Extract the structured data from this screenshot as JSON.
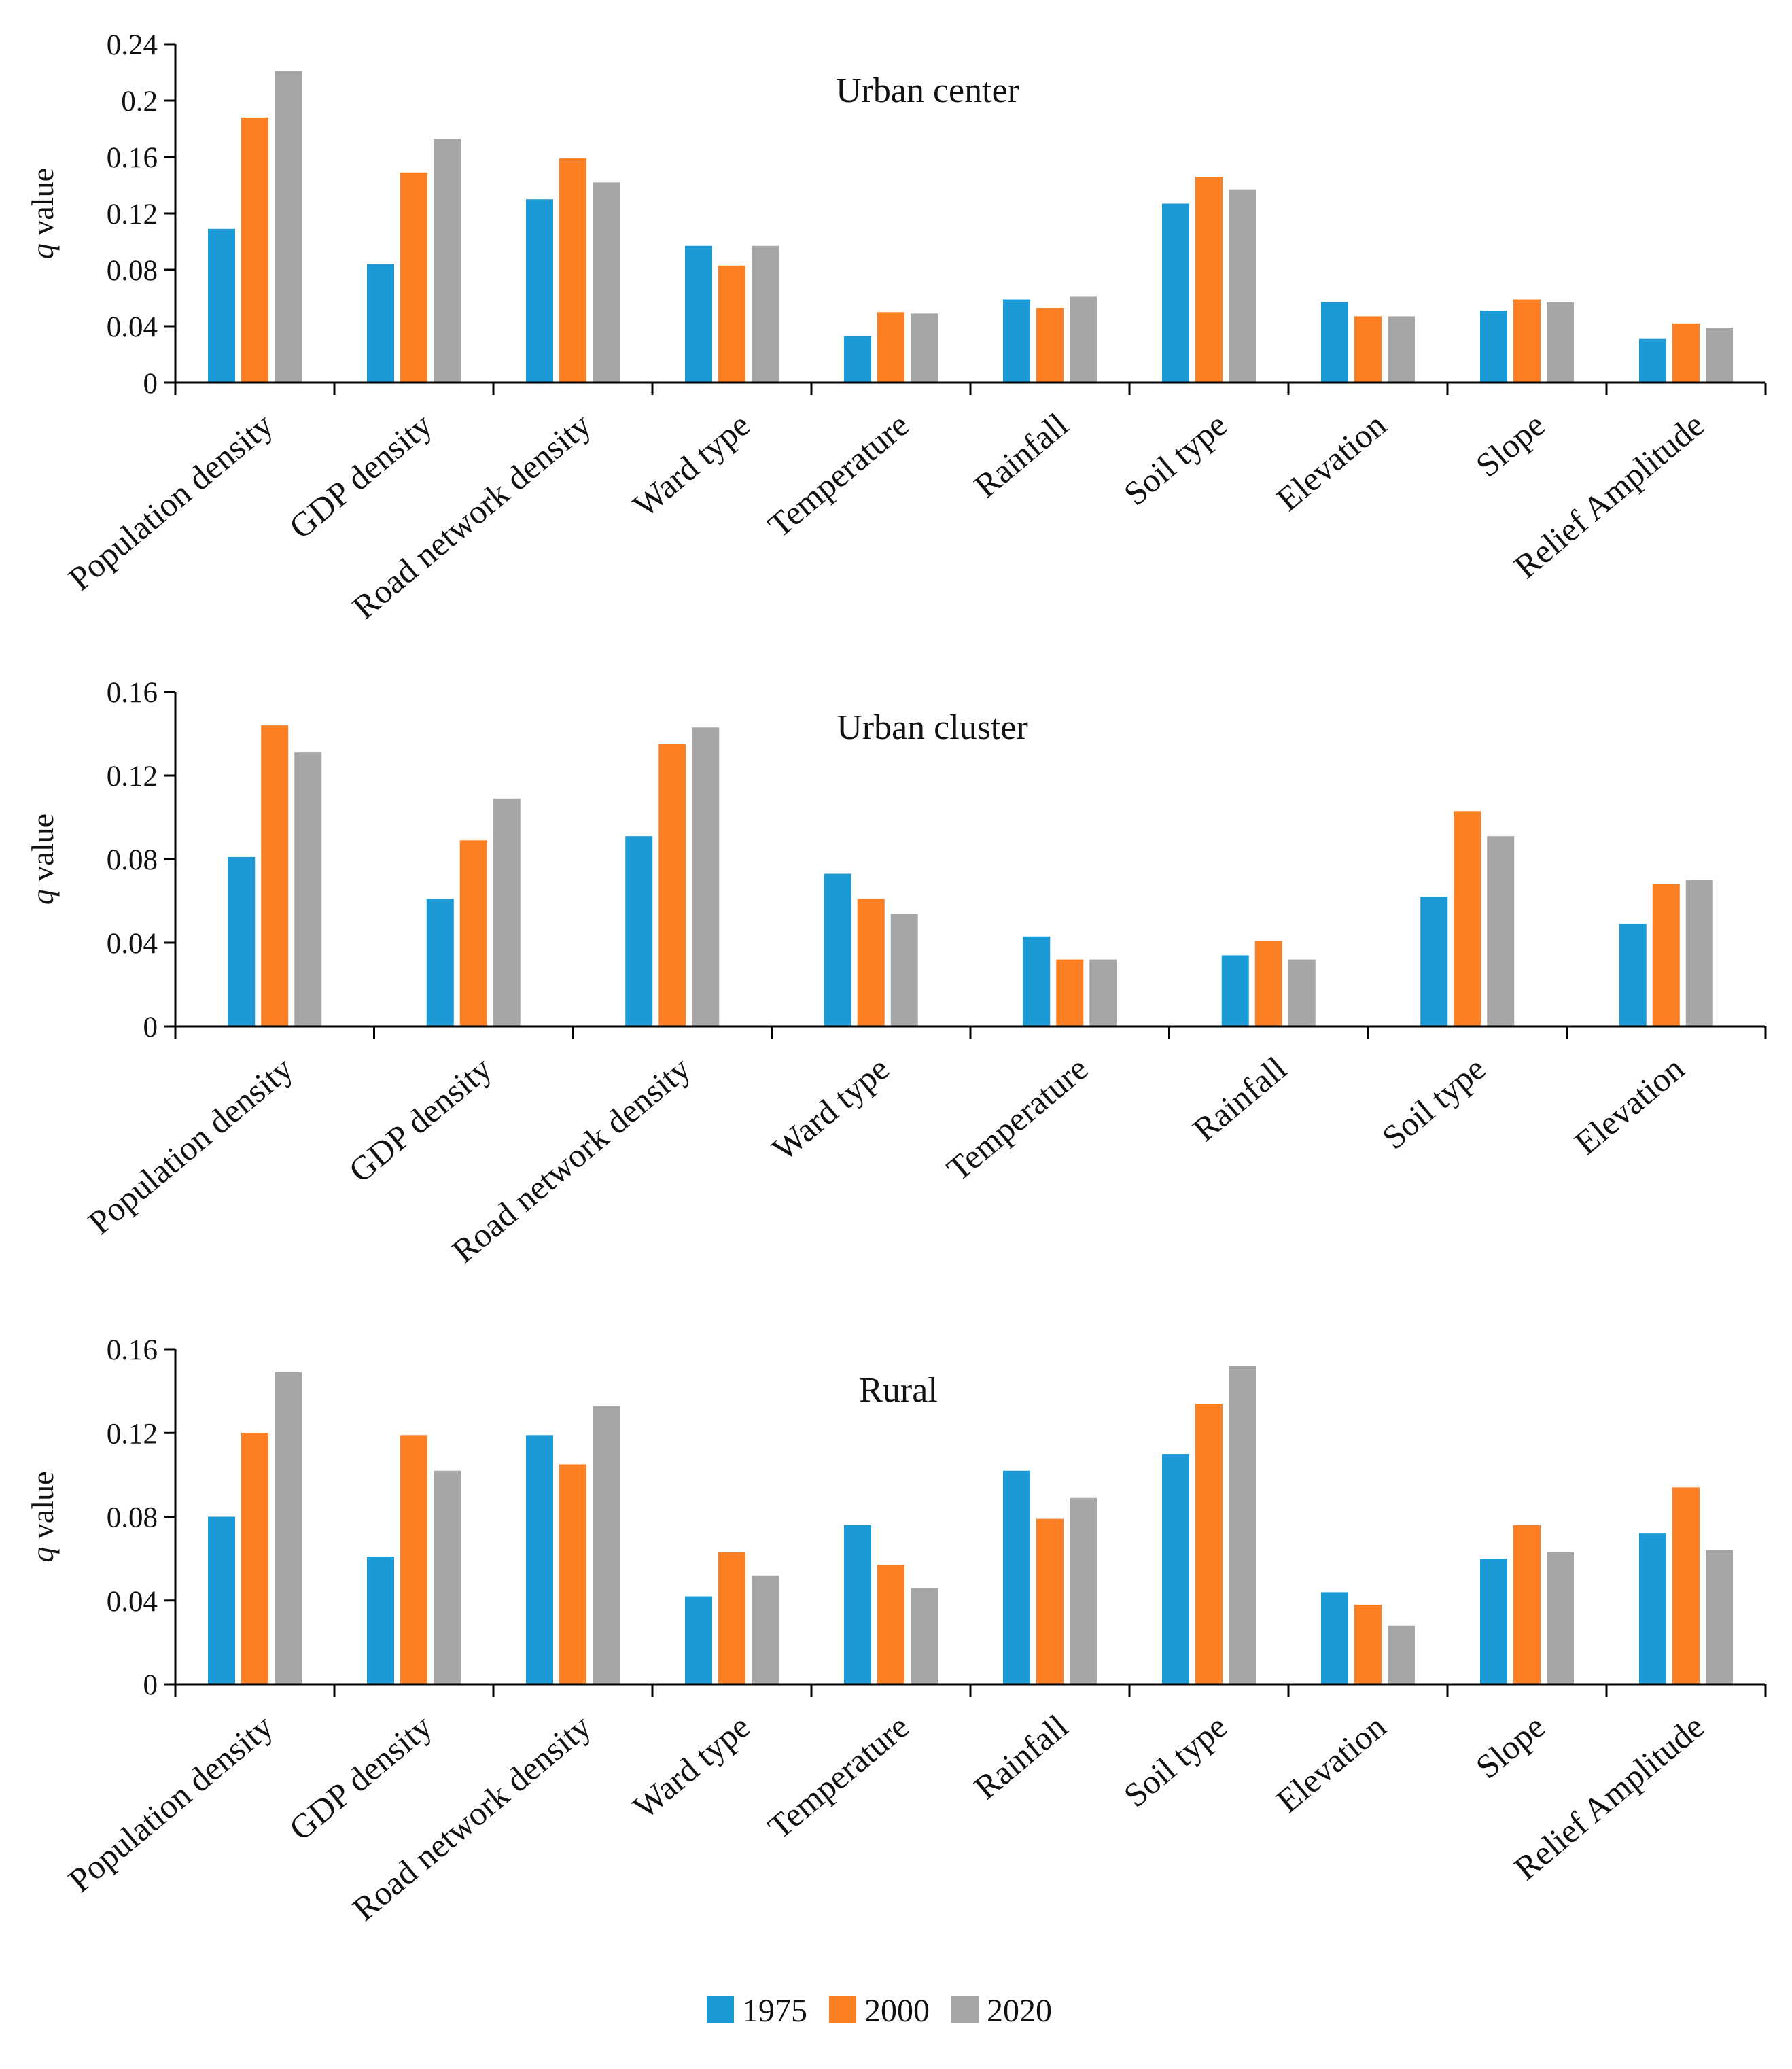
{
  "colors": {
    "1975": "#1b9ad6",
    "2000": "#fd7f23",
    "2020": "#a6a6a6",
    "axis": "#000000"
  },
  "legend": [
    {
      "label": "1975",
      "colorKey": "1975"
    },
    {
      "label": "2000",
      "colorKey": "2000"
    },
    {
      "label": "2020",
      "colorKey": "2020"
    }
  ],
  "chart_data": [
    {
      "type": "bar",
      "title": "Urban center",
      "ylabel_italic": "q",
      "ylabel": "value",
      "ylim": [
        0,
        0.24
      ],
      "yticks": [
        "0",
        "0.04",
        "0.08",
        "0.12",
        "0.16",
        "0.2",
        "0.24"
      ],
      "categories": [
        "Population density",
        "GDP density",
        "Road network density",
        "Ward type",
        "Temperature",
        "Rainfall",
        "Soil type",
        "Elevation",
        "Slope",
        "Relief Amplitude"
      ],
      "series": [
        {
          "name": "1975",
          "values": [
            0.109,
            0.084,
            0.13,
            0.097,
            0.033,
            0.059,
            0.127,
            0.057,
            0.051,
            0.031
          ]
        },
        {
          "name": "2000",
          "values": [
            0.188,
            0.149,
            0.159,
            0.083,
            0.05,
            0.053,
            0.146,
            0.047,
            0.059,
            0.042
          ]
        },
        {
          "name": "2020",
          "values": [
            0.221,
            0.173,
            0.142,
            0.097,
            0.049,
            0.061,
            0.137,
            0.047,
            0.057,
            0.039
          ]
        }
      ]
    },
    {
      "type": "bar",
      "title": "Urban cluster",
      "ylabel_italic": "q",
      "ylabel": "value",
      "ylim": [
        0,
        0.16
      ],
      "yticks": [
        "0",
        "0.04",
        "0.08",
        "0.12",
        "0.16"
      ],
      "categories": [
        "Population density",
        "GDP density",
        "Road network density",
        "Ward type",
        "Temperature",
        "Rainfall",
        "Soil type",
        "Elevation"
      ],
      "series": [
        {
          "name": "1975",
          "values": [
            0.081,
            0.061,
            0.091,
            0.073,
            0.043,
            0.034,
            0.062,
            0.049
          ]
        },
        {
          "name": "2000",
          "values": [
            0.144,
            0.089,
            0.135,
            0.061,
            0.032,
            0.041,
            0.103,
            0.068
          ]
        },
        {
          "name": "2020",
          "values": [
            0.131,
            0.109,
            0.143,
            0.054,
            0.032,
            0.032,
            0.091,
            0.07
          ]
        }
      ]
    },
    {
      "type": "bar",
      "title": "Rural",
      "ylabel_italic": "q",
      "ylabel": "value",
      "ylim": [
        0,
        0.16
      ],
      "yticks": [
        "0",
        "0.04",
        "0.08",
        "0.12",
        "0.16"
      ],
      "categories": [
        "Population density",
        "GDP density",
        "Road network density",
        "Ward type",
        "Temperature",
        "Rainfall",
        "Soil type",
        "Elevation",
        "Slope",
        "Relief Amplitude"
      ],
      "series": [
        {
          "name": "1975",
          "values": [
            0.08,
            0.061,
            0.119,
            0.042,
            0.076,
            0.102,
            0.11,
            0.044,
            0.06,
            0.072
          ]
        },
        {
          "name": "2000",
          "values": [
            0.12,
            0.119,
            0.105,
            0.063,
            0.057,
            0.079,
            0.134,
            0.038,
            0.076,
            0.094
          ]
        },
        {
          "name": "2020",
          "values": [
            0.149,
            0.102,
            0.133,
            0.052,
            0.046,
            0.089,
            0.152,
            0.028,
            0.063,
            0.064
          ]
        }
      ]
    }
  ]
}
